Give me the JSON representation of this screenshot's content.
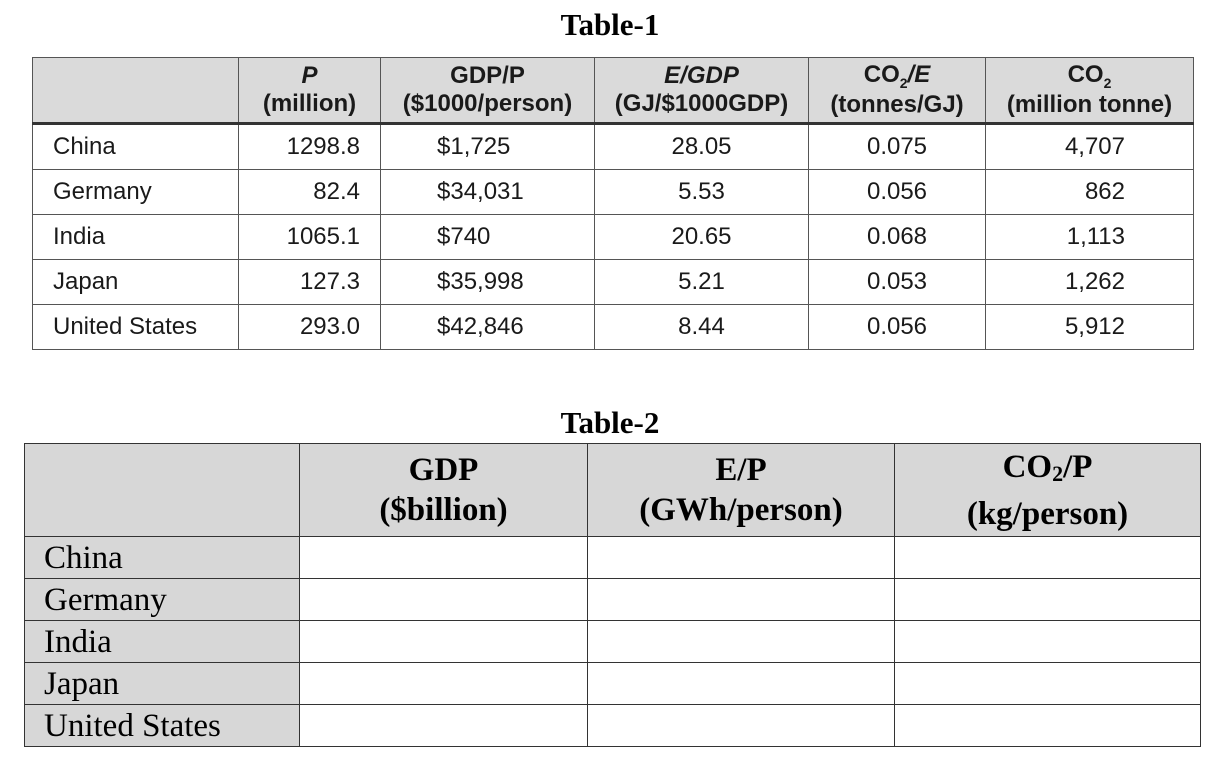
{
  "table1": {
    "title": "Table-1",
    "columns": [
      {
        "label": "",
        "unit": ""
      },
      {
        "label": "P",
        "unit": "(million)"
      },
      {
        "label": "GDP/P",
        "unit": "($1000/person)"
      },
      {
        "label": "E/GDP",
        "unit": "(GJ/$1000GDP)"
      },
      {
        "label_pre": "CO",
        "label_sub": "2",
        "label_post": "/E",
        "unit": "(tonnes/GJ)"
      },
      {
        "label_pre": "CO",
        "label_sub": "2",
        "unit": "(million tonne)"
      }
    ],
    "rows": [
      {
        "country": "China",
        "p": "1298.8",
        "gdp_p": "$1,725",
        "e_gdp": "28.05",
        "co2_e": "0.075",
        "co2": "4,707"
      },
      {
        "country": "Germany",
        "p": "82.4",
        "gdp_p": "$34,031",
        "e_gdp": "5.53",
        "co2_e": "0.056",
        "co2": "862"
      },
      {
        "country": "India",
        "p": "1065.1",
        "gdp_p": "$740",
        "e_gdp": "20.65",
        "co2_e": "0.068",
        "co2": "1,113"
      },
      {
        "country": "Japan",
        "p": "127.3",
        "gdp_p": "$35,998",
        "e_gdp": "5.21",
        "co2_e": "0.053",
        "co2": "1,262"
      },
      {
        "country": "United States",
        "p": "293.0",
        "gdp_p": "$42,846",
        "e_gdp": "8.44",
        "co2_e": "0.056",
        "co2": "5,912"
      }
    ]
  },
  "table2": {
    "title": "Table-2",
    "columns": [
      {
        "label": "",
        "unit": ""
      },
      {
        "label": "GDP",
        "unit": "($billion)"
      },
      {
        "label": "E/P",
        "unit": "(GWh/person)"
      },
      {
        "label_pre": "CO",
        "label_sub": "2",
        "label_post": "/P",
        "unit": "(kg/person)"
      }
    ],
    "rows": [
      {
        "country": "China",
        "gdp": "",
        "e_p": "",
        "co2_p": ""
      },
      {
        "country": "Germany",
        "gdp": "",
        "e_p": "",
        "co2_p": ""
      },
      {
        "country": "India",
        "gdp": "",
        "e_p": "",
        "co2_p": ""
      },
      {
        "country": "Japan",
        "gdp": "",
        "e_p": "",
        "co2_p": ""
      },
      {
        "country": "United States",
        "gdp": "",
        "e_p": "",
        "co2_p": ""
      }
    ]
  }
}
